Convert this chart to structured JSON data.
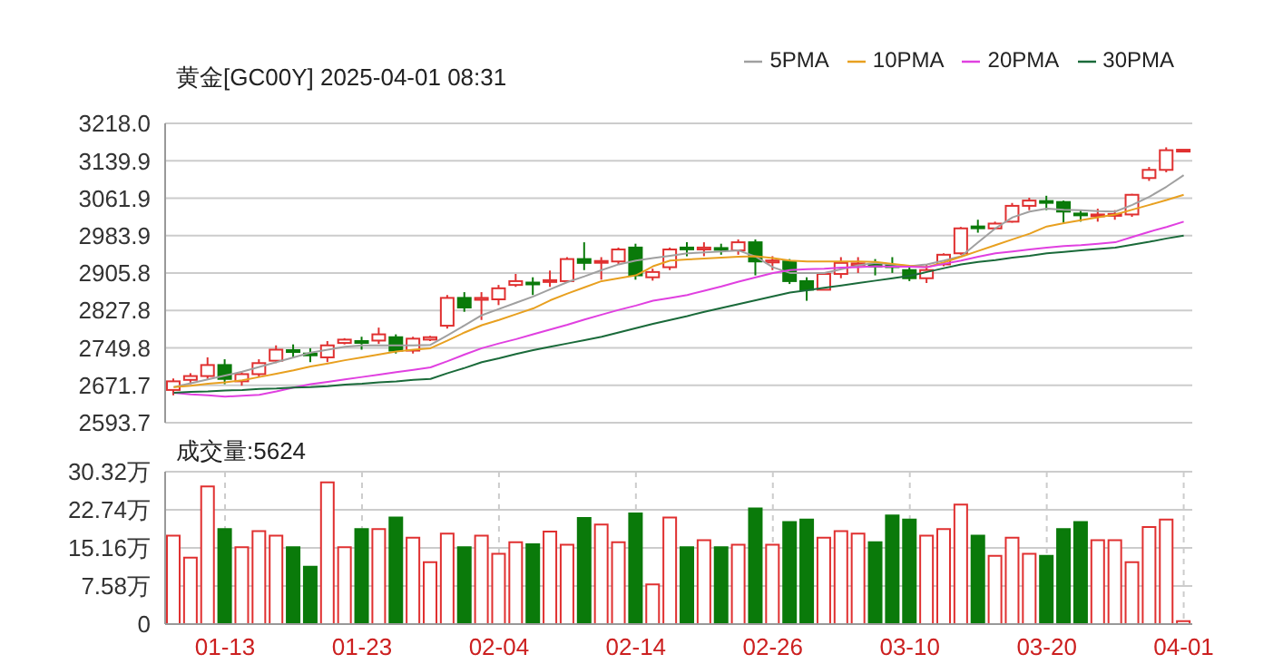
{
  "chart_data": [
    {
      "type": "candlestick",
      "title": "黄金[GC00Y] 2025-04-01 08:31",
      "legend": "top right",
      "grid": true,
      "tick_labels": "y",
      "categories": [
        null,
        null,
        null,
        null,
        null,
        null,
        null,
        null,
        null,
        null,
        null,
        null,
        null,
        null,
        null,
        null,
        null,
        null,
        null,
        null,
        null,
        null,
        null,
        null,
        null,
        null,
        null,
        null,
        null,
        null,
        null,
        null,
        null,
        null,
        null,
        null,
        null,
        null,
        null,
        null,
        null,
        null,
        null,
        null,
        null,
        null,
        null,
        null,
        null,
        null,
        null,
        null,
        null,
        null,
        null,
        null,
        null,
        null,
        null,
        null
      ],
      "ylim": [
        2593.7,
        3218
      ],
      "yticks": [
        2593.7,
        2671.7,
        2749.8,
        2827.8,
        2905.8,
        2983.9,
        3061.9,
        3139.9,
        {
          "value": 3218,
          "label": "3218.0"
        }
      ],
      "ohlc": [
        [
          2662,
          2686,
          2651,
          2680
        ],
        [
          2683,
          2697,
          2674,
          2691
        ],
        [
          2691,
          2730,
          2685,
          2714
        ],
        [
          2714,
          2726,
          2674,
          2685
        ],
        [
          2680,
          2699,
          2671,
          2695
        ],
        [
          2695,
          2726,
          2689,
          2718
        ],
        [
          2723,
          2755,
          2718,
          2746
        ],
        [
          2745,
          2757,
          2730,
          2743
        ],
        [
          2738,
          2749,
          2720,
          2735
        ],
        [
          2730,
          2764,
          2720,
          2755
        ],
        [
          2760,
          2770,
          2757,
          2767
        ],
        [
          2764,
          2773,
          2746,
          2762
        ],
        [
          2765,
          2792,
          2758,
          2778
        ],
        [
          2772,
          2778,
          2738,
          2744
        ],
        [
          2744,
          2773,
          2738,
          2769
        ],
        [
          2767,
          2775,
          2764,
          2772
        ],
        [
          2796,
          2860,
          2790,
          2854
        ],
        [
          2854,
          2866,
          2825,
          2834
        ],
        [
          2850,
          2866,
          2808,
          2854
        ],
        [
          2851,
          2881,
          2839,
          2874
        ],
        [
          2881,
          2904,
          2877,
          2889
        ],
        [
          2886,
          2897,
          2860,
          2883
        ],
        [
          2888,
          2911,
          2877,
          2891
        ],
        [
          2889,
          2939,
          2885,
          2935
        ],
        [
          2935,
          2970,
          2912,
          2927
        ],
        [
          2928,
          2939,
          2892,
          2931
        ],
        [
          2930,
          2959,
          2924,
          2955
        ],
        [
          2959,
          2967,
          2892,
          2901
        ],
        [
          2897,
          2915,
          2890,
          2908
        ],
        [
          2918,
          2959,
          2912,
          2955
        ],
        [
          2959,
          2970,
          2941,
          2956
        ],
        [
          2955,
          2970,
          2941,
          2959
        ],
        [
          2958,
          2967,
          2944,
          2955
        ],
        [
          2953,
          2976,
          2944,
          2970
        ],
        [
          2970,
          2976,
          2901,
          2930
        ],
        [
          2928,
          2941,
          2912,
          2932
        ],
        [
          2930,
          2935,
          2883,
          2889
        ],
        [
          2889,
          2897,
          2848,
          2871
        ],
        [
          2871,
          2906,
          2871,
          2904
        ],
        [
          2904,
          2939,
          2895,
          2927
        ],
        [
          2922,
          2939,
          2906,
          2926
        ],
        [
          2923,
          2935,
          2901,
          2920
        ],
        [
          2922,
          2939,
          2906,
          2920
        ],
        [
          2912,
          2918,
          2889,
          2895
        ],
        [
          2895,
          2924,
          2885,
          2912
        ],
        [
          2924,
          2947,
          2920,
          2944
        ],
        [
          2947,
          3002,
          2944,
          2999
        ],
        [
          3003,
          3017,
          2990,
          3000
        ],
        [
          2999,
          3013,
          2997,
          3009
        ],
        [
          3013,
          3052,
          3011,
          3046
        ],
        [
          3046,
          3063,
          3037,
          3057
        ],
        [
          3056,
          3067,
          3037,
          3054
        ],
        [
          3054,
          3057,
          3011,
          3034
        ],
        [
          3030,
          3037,
          3013,
          3028
        ],
        [
          3025,
          3040,
          3013,
          3028
        ],
        [
          3027,
          3037,
          3017,
          3029
        ],
        [
          3028,
          3071,
          3023,
          3069
        ],
        [
          3104,
          3127,
          3098,
          3121
        ],
        [
          3121,
          3168,
          3116,
          3162
        ],
        [
          3162,
          3163,
          3162,
          3163
        ]
      ],
      "colors": [
        "#e03030",
        "#e03030",
        "#e03030",
        "#0a7a0a",
        "#e03030",
        "#e03030",
        "#e03030",
        "#0a7a0a",
        "#0a7a0a",
        "#e03030",
        "#e03030",
        "#0a7a0a",
        "#e03030",
        "#0a7a0a",
        "#e03030",
        "#e03030",
        "#e03030",
        "#0a7a0a",
        "#e03030",
        "#e03030",
        "#e03030",
        "#0a7a0a",
        "#e03030",
        "#e03030",
        "#0a7a0a",
        "#e03030",
        "#e03030",
        "#0a7a0a",
        "#e03030",
        "#e03030",
        "#0a7a0a",
        "#e03030",
        "#0a7a0a",
        "#e03030",
        "#0a7a0a",
        "#e03030",
        "#0a7a0a",
        "#0a7a0a",
        "#e03030",
        "#e03030",
        "#e03030",
        "#0a7a0a",
        "#0a7a0a",
        "#0a7a0a",
        "#e03030",
        "#e03030",
        "#e03030",
        "#0a7a0a",
        "#e03030",
        "#e03030",
        "#e03030",
        "#0a7a0a",
        "#0a7a0a",
        "#0a7a0a",
        "#e03030",
        "#e03030",
        "#e03030",
        "#e03030",
        "#e03030",
        "#e03030"
      ],
      "series": [
        {
          "name": "5PMA",
          "type": "line",
          "color": "#a0a0a0",
          "values": [
            2668,
            2676,
            2684,
            2692,
            2700,
            2710,
            2720,
            2730,
            2740,
            2746,
            2752,
            2755,
            2755,
            2755,
            2755,
            2756,
            2776,
            2797,
            2818,
            2831,
            2844,
            2857,
            2872,
            2887,
            2899,
            2912,
            2924,
            2932,
            2937,
            2942,
            2947,
            2949,
            2951,
            2953,
            2940,
            2918,
            2906,
            2906,
            2906,
            2914,
            2922,
            2927,
            2924,
            2920,
            2924,
            2932,
            2941,
            2970,
            2999,
            3022,
            3034,
            3040,
            3038,
            3037,
            3035,
            3034,
            3048,
            3065,
            3086,
            3110
          ]
        },
        {
          "name": "10PMA",
          "type": "line",
          "color": "#e8a020",
          "values": [
            2668,
            2671,
            2675,
            2678,
            2682,
            2689,
            2696,
            2703,
            2711,
            2717,
            2724,
            2730,
            2736,
            2742,
            2746,
            2749,
            2765,
            2782,
            2797,
            2808,
            2820,
            2832,
            2849,
            2863,
            2876,
            2889,
            2895,
            2901,
            2920,
            2932,
            2934,
            2936,
            2938,
            2940,
            2941,
            2937,
            2932,
            2930,
            2930,
            2930,
            2930,
            2929,
            2925,
            2921,
            2918,
            2928,
            2940,
            2952,
            2964,
            2976,
            2988,
            3003,
            3010,
            3016,
            3022,
            3028,
            3038,
            3048,
            3058,
            3069
          ]
        },
        {
          "name": "20PMA",
          "type": "line",
          "color": "#e040e0",
          "values": [
            2656,
            2653,
            2651,
            2648,
            2650,
            2652,
            2659,
            2667,
            2674,
            2679,
            2684,
            2689,
            2694,
            2699,
            2704,
            2709,
            2722,
            2736,
            2749,
            2759,
            2768,
            2778,
            2788,
            2798,
            2809,
            2819,
            2829,
            2838,
            2848,
            2854,
            2860,
            2869,
            2878,
            2888,
            2897,
            2906,
            2912,
            2914,
            2915,
            2917,
            2918,
            2920,
            2919,
            2919,
            2918,
            2925,
            2932,
            2940,
            2947,
            2951,
            2955,
            2959,
            2962,
            2964,
            2967,
            2970,
            2981,
            2992,
            3002,
            3013
          ]
        },
        {
          "name": "30PMA",
          "type": "line",
          "color": "#1a6a3a",
          "values": [
            2656,
            2658,
            2659,
            2661,
            2662,
            2664,
            2665,
            2667,
            2668,
            2670,
            2673,
            2675,
            2678,
            2680,
            2683,
            2685,
            2697,
            2708,
            2720,
            2728,
            2737,
            2745,
            2752,
            2759,
            2766,
            2773,
            2782,
            2791,
            2800,
            2808,
            2816,
            2825,
            2833,
            2841,
            2849,
            2857,
            2865,
            2870,
            2875,
            2880,
            2885,
            2890,
            2895,
            2900,
            2908,
            2916,
            2924,
            2929,
            2933,
            2938,
            2942,
            2947,
            2950,
            2953,
            2956,
            2959,
            2965,
            2971,
            2978,
            2984
          ]
        }
      ]
    },
    {
      "type": "bar",
      "title": "成交量:5624",
      "grid": true,
      "categories": [
        null,
        null,
        null,
        "01-13",
        null,
        null,
        null,
        null,
        null,
        null,
        null,
        "01-23",
        null,
        null,
        null,
        null,
        null,
        null,
        null,
        "02-04",
        null,
        null,
        null,
        null,
        null,
        null,
        null,
        "02-14",
        null,
        null,
        null,
        null,
        null,
        null,
        null,
        "02-26",
        null,
        null,
        null,
        null,
        null,
        null,
        null,
        "03-10",
        null,
        null,
        null,
        null,
        null,
        null,
        null,
        "03-20",
        null,
        null,
        null,
        null,
        null,
        null,
        null,
        "04-01"
      ],
      "ylim": [
        0,
        30.32
      ],
      "yticks": [
        0,
        {
          "value": 7.58,
          "label": "7.58万"
        },
        {
          "value": 15.16,
          "label": "15.16万"
        },
        {
          "value": 22.74,
          "label": "22.74万"
        },
        {
          "value": 30.32,
          "label": "30.32万"
        }
      ],
      "values": [
        17.6,
        13.2,
        27.4,
        18.9,
        15.3,
        18.5,
        17.6,
        15.3,
        11.4,
        28.2,
        15.3,
        18.9,
        18.9,
        21.2,
        17.2,
        12.3,
        18.0,
        15.3,
        17.6,
        14.0,
        16.3,
        15.9,
        18.4,
        15.8,
        21.1,
        19.8,
        16.3,
        22.0,
        7.9,
        21.2,
        15.3,
        16.7,
        15.3,
        15.8,
        23.0,
        15.8,
        20.3,
        20.8,
        17.2,
        18.5,
        18.0,
        16.3,
        21.6,
        20.8,
        17.6,
        18.9,
        23.8,
        17.6,
        13.6,
        17.2,
        14.0,
        13.6,
        18.9,
        20.3,
        16.7,
        16.7,
        12.3,
        19.3,
        20.8,
        0.6
      ],
      "colors": [
        "#e03030",
        "#e03030",
        "#e03030",
        "#0a7a0a",
        "#e03030",
        "#e03030",
        "#e03030",
        "#0a7a0a",
        "#0a7a0a",
        "#e03030",
        "#e03030",
        "#0a7a0a",
        "#e03030",
        "#0a7a0a",
        "#e03030",
        "#e03030",
        "#e03030",
        "#0a7a0a",
        "#e03030",
        "#e03030",
        "#e03030",
        "#0a7a0a",
        "#e03030",
        "#e03030",
        "#0a7a0a",
        "#e03030",
        "#e03030",
        "#0a7a0a",
        "#e03030",
        "#e03030",
        "#0a7a0a",
        "#e03030",
        "#0a7a0a",
        "#e03030",
        "#0a7a0a",
        "#e03030",
        "#0a7a0a",
        "#0a7a0a",
        "#e03030",
        "#e03030",
        "#e03030",
        "#0a7a0a",
        "#0a7a0a",
        "#0a7a0a",
        "#e03030",
        "#e03030",
        "#e03030",
        "#0a7a0a",
        "#e03030",
        "#e03030",
        "#e03030",
        "#0a7a0a",
        "#0a7a0a",
        "#0a7a0a",
        "#e03030",
        "#e03030",
        "#e03030",
        "#e03030",
        "#e03030",
        "#e03030"
      ]
    }
  ]
}
